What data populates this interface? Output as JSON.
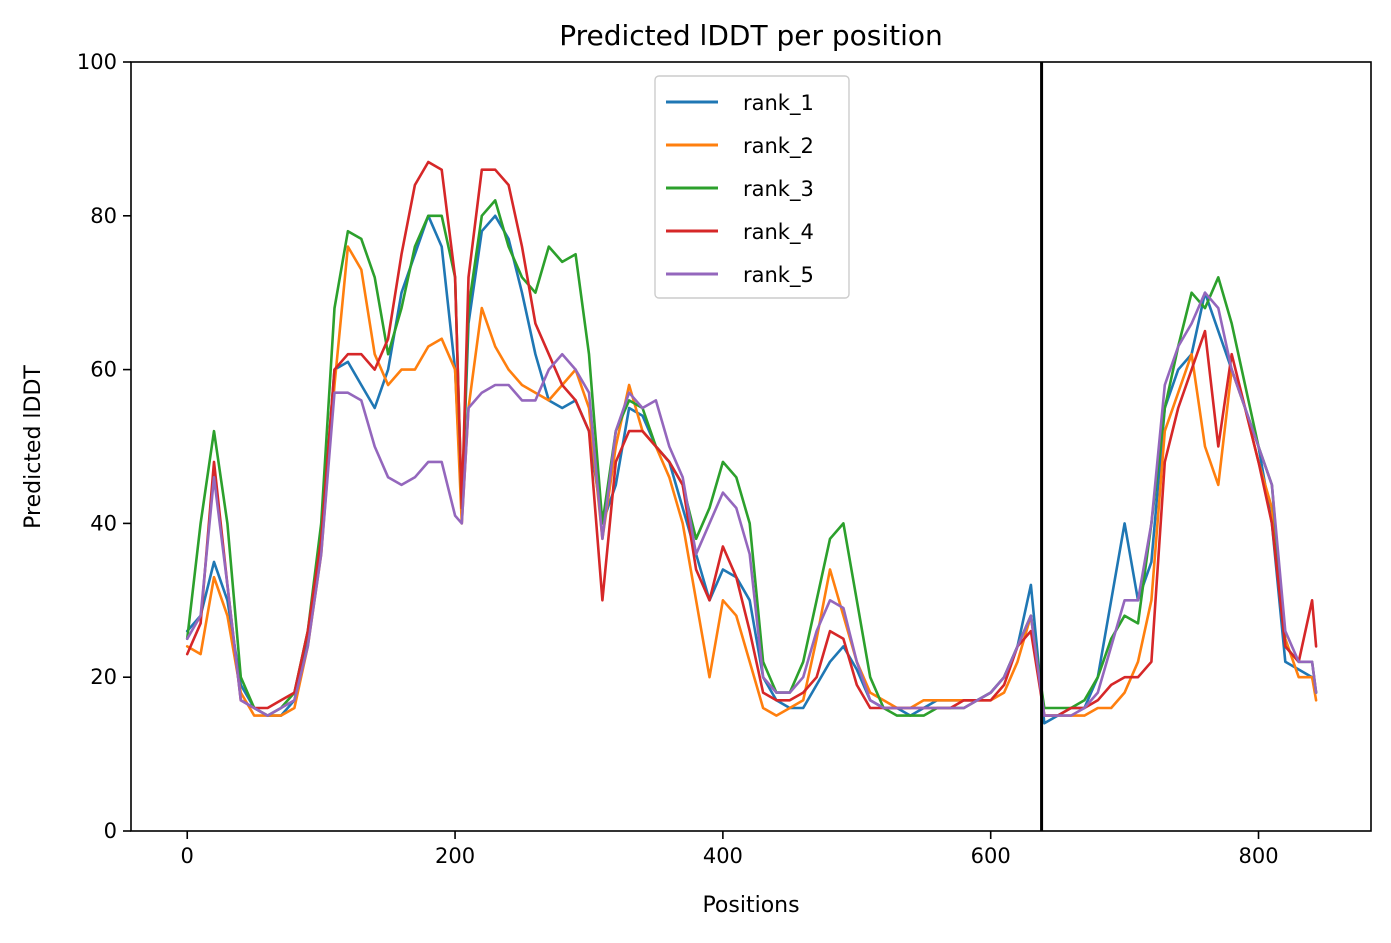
{
  "chart_data": {
    "type": "line",
    "title": "Predicted lDDT per position",
    "xlabel": "Positions",
    "ylabel": "Predicted lDDT",
    "xlim": [
      -42,
      884
    ],
    "ylim": [
      0,
      100
    ],
    "xticks": [
      0,
      200,
      400,
      600,
      800
    ],
    "yticks": [
      0,
      20,
      40,
      60,
      80,
      100
    ],
    "xtick_labels": [
      "0",
      "200",
      "400",
      "600",
      "800"
    ],
    "ytick_labels": [
      "0",
      "20",
      "40",
      "60",
      "80",
      "100"
    ],
    "grid": false,
    "legend_position": "top-center",
    "vertical_lines": [
      638
    ],
    "vertical_line_color": "#000000",
    "series": [
      {
        "name": "rank_1",
        "color": "#1f77b4",
        "x": [
          0,
          10,
          20,
          30,
          40,
          50,
          60,
          70,
          80,
          90,
          100,
          110,
          120,
          130,
          140,
          150,
          160,
          170,
          180,
          190,
          200,
          205,
          210,
          220,
          230,
          240,
          250,
          260,
          270,
          280,
          290,
          300,
          310,
          320,
          330,
          340,
          350,
          360,
          370,
          380,
          390,
          400,
          410,
          420,
          430,
          440,
          450,
          460,
          470,
          480,
          490,
          500,
          510,
          520,
          530,
          540,
          550,
          560,
          570,
          580,
          590,
          600,
          610,
          620,
          630,
          640,
          650,
          660,
          670,
          680,
          690,
          700,
          710,
          720,
          730,
          740,
          750,
          760,
          770,
          780,
          790,
          800,
          810,
          820,
          830,
          840,
          843
        ],
        "values": [
          26,
          28,
          35,
          30,
          19,
          16,
          15,
          15,
          17,
          25,
          38,
          60,
          61,
          58,
          55,
          60,
          70,
          75,
          80,
          76,
          60,
          42,
          66,
          78,
          80,
          77,
          70,
          62,
          56,
          55,
          56,
          52,
          40,
          45,
          55,
          54,
          50,
          48,
          42,
          36,
          30,
          34,
          33,
          30,
          20,
          17,
          16,
          16,
          19,
          22,
          24,
          21,
          17,
          16,
          16,
          15,
          16,
          17,
          17,
          17,
          17,
          18,
          20,
          24,
          32,
          14,
          15,
          16,
          16,
          20,
          30,
          40,
          30,
          35,
          55,
          60,
          62,
          70,
          65,
          60,
          55,
          50,
          40,
          22,
          21,
          20,
          18
        ]
      },
      {
        "name": "rank_2",
        "color": "#ff7f0e",
        "x": [
          0,
          10,
          20,
          30,
          40,
          50,
          60,
          70,
          80,
          90,
          100,
          110,
          120,
          130,
          140,
          150,
          160,
          170,
          180,
          190,
          200,
          205,
          210,
          220,
          230,
          240,
          250,
          260,
          270,
          280,
          290,
          300,
          310,
          320,
          330,
          340,
          350,
          360,
          370,
          380,
          390,
          400,
          410,
          420,
          430,
          440,
          450,
          460,
          470,
          480,
          490,
          500,
          510,
          520,
          530,
          540,
          550,
          560,
          570,
          580,
          590,
          600,
          610,
          620,
          630,
          640,
          650,
          660,
          670,
          680,
          690,
          700,
          710,
          720,
          730,
          740,
          750,
          760,
          770,
          780,
          790,
          800,
          810,
          820,
          830,
          840,
          843
        ],
        "values": [
          24,
          23,
          33,
          28,
          18,
          15,
          15,
          15,
          16,
          24,
          36,
          58,
          76,
          73,
          62,
          58,
          60,
          60,
          63,
          64,
          60,
          40,
          55,
          68,
          63,
          60,
          58,
          57,
          56,
          58,
          60,
          55,
          38,
          50,
          58,
          52,
          50,
          46,
          40,
          30,
          20,
          30,
          28,
          22,
          16,
          15,
          16,
          17,
          25,
          34,
          28,
          22,
          18,
          17,
          16,
          16,
          17,
          17,
          17,
          17,
          17,
          17,
          18,
          22,
          28,
          15,
          15,
          15,
          15,
          16,
          16,
          18,
          22,
          30,
          52,
          57,
          62,
          50,
          45,
          60,
          55,
          48,
          42,
          25,
          20,
          20,
          17
        ]
      },
      {
        "name": "rank_3",
        "color": "#2ca02c",
        "x": [
          0,
          10,
          20,
          30,
          40,
          50,
          60,
          70,
          80,
          90,
          100,
          110,
          120,
          130,
          140,
          150,
          160,
          170,
          180,
          190,
          200,
          205,
          210,
          220,
          230,
          240,
          250,
          260,
          270,
          280,
          290,
          300,
          310,
          320,
          330,
          340,
          350,
          360,
          370,
          380,
          390,
          400,
          410,
          420,
          430,
          440,
          450,
          460,
          470,
          480,
          490,
          500,
          510,
          520,
          530,
          540,
          550,
          560,
          570,
          580,
          590,
          600,
          610,
          620,
          630,
          640,
          650,
          660,
          670,
          680,
          690,
          700,
          710,
          720,
          730,
          740,
          750,
          760,
          770,
          780,
          790,
          800,
          810,
          820,
          830,
          840,
          843
        ],
        "values": [
          25,
          40,
          52,
          40,
          20,
          16,
          15,
          16,
          18,
          26,
          40,
          68,
          78,
          77,
          72,
          62,
          68,
          76,
          80,
          80,
          72,
          42,
          68,
          80,
          82,
          76,
          72,
          70,
          76,
          74,
          75,
          62,
          40,
          52,
          56,
          55,
          50,
          48,
          45,
          38,
          42,
          48,
          46,
          40,
          22,
          18,
          18,
          22,
          30,
          38,
          40,
          30,
          20,
          16,
          15,
          15,
          15,
          16,
          16,
          16,
          17,
          18,
          20,
          24,
          28,
          16,
          16,
          16,
          17,
          20,
          25,
          28,
          27,
          40,
          55,
          63,
          70,
          68,
          72,
          66,
          58,
          50,
          45,
          24,
          22,
          22,
          18
        ]
      },
      {
        "name": "rank_4",
        "color": "#d62728",
        "x": [
          0,
          10,
          20,
          30,
          40,
          50,
          60,
          70,
          80,
          90,
          100,
          110,
          120,
          130,
          140,
          150,
          160,
          170,
          180,
          190,
          200,
          205,
          210,
          220,
          230,
          240,
          250,
          260,
          270,
          280,
          290,
          300,
          310,
          320,
          330,
          340,
          350,
          360,
          370,
          380,
          390,
          400,
          410,
          420,
          430,
          440,
          450,
          460,
          470,
          480,
          490,
          500,
          510,
          520,
          530,
          540,
          550,
          560,
          570,
          580,
          590,
          600,
          610,
          620,
          630,
          640,
          650,
          660,
          670,
          680,
          690,
          700,
          710,
          720,
          730,
          740,
          750,
          760,
          770,
          780,
          790,
          800,
          810,
          820,
          830,
          840,
          843
        ],
        "values": [
          23,
          27,
          48,
          32,
          17,
          16,
          16,
          17,
          18,
          26,
          38,
          60,
          62,
          62,
          60,
          64,
          75,
          84,
          87,
          86,
          72,
          42,
          72,
          86,
          86,
          84,
          76,
          66,
          62,
          58,
          56,
          52,
          30,
          48,
          52,
          52,
          50,
          48,
          45,
          34,
          30,
          37,
          33,
          26,
          18,
          17,
          17,
          18,
          20,
          26,
          25,
          19,
          16,
          16,
          16,
          16,
          16,
          16,
          16,
          17,
          17,
          17,
          19,
          24,
          26,
          15,
          15,
          16,
          16,
          17,
          19,
          20,
          20,
          22,
          48,
          55,
          60,
          65,
          50,
          62,
          55,
          48,
          40,
          24,
          22,
          30,
          24
        ]
      },
      {
        "name": "rank_5",
        "color": "#9467bd",
        "x": [
          0,
          10,
          20,
          30,
          40,
          50,
          60,
          70,
          80,
          90,
          100,
          110,
          120,
          130,
          140,
          150,
          160,
          170,
          180,
          190,
          200,
          205,
          210,
          220,
          230,
          240,
          250,
          260,
          270,
          280,
          290,
          300,
          310,
          320,
          330,
          340,
          350,
          360,
          370,
          380,
          390,
          400,
          410,
          420,
          430,
          440,
          450,
          460,
          470,
          480,
          490,
          500,
          510,
          520,
          530,
          540,
          550,
          560,
          570,
          580,
          590,
          600,
          610,
          620,
          630,
          640,
          650,
          660,
          670,
          680,
          690,
          700,
          710,
          720,
          730,
          740,
          750,
          760,
          770,
          780,
          790,
          800,
          810,
          820,
          830,
          840,
          843
        ],
        "values": [
          25,
          28,
          46,
          32,
          17,
          16,
          15,
          16,
          17,
          24,
          36,
          57,
          57,
          56,
          50,
          46,
          45,
          46,
          48,
          48,
          41,
          40,
          55,
          57,
          58,
          58,
          56,
          56,
          60,
          62,
          60,
          57,
          38,
          52,
          57,
          55,
          56,
          50,
          46,
          36,
          40,
          44,
          42,
          36,
          20,
          18,
          18,
          20,
          26,
          30,
          29,
          22,
          17,
          16,
          16,
          16,
          16,
          16,
          16,
          16,
          17,
          18,
          20,
          24,
          28,
          15,
          15,
          15,
          16,
          18,
          24,
          30,
          30,
          40,
          58,
          63,
          66,
          70,
          68,
          60,
          55,
          50,
          45,
          26,
          22,
          22,
          18
        ]
      }
    ]
  }
}
